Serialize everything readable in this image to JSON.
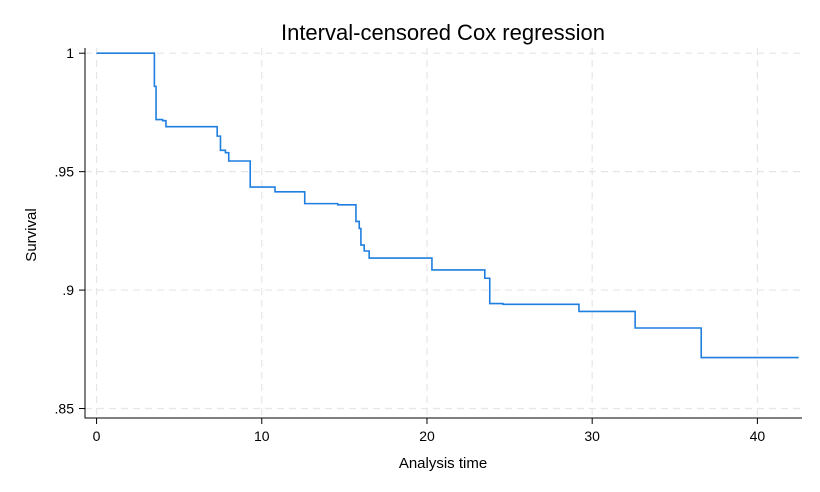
{
  "chart_data": {
    "type": "line",
    "title": "Interval-censored Cox regression",
    "xlabel": "Analysis time",
    "ylabel": "Survival",
    "xlim": [
      -0.7,
      42.7
    ],
    "ylim": [
      0.846,
      1.0022
    ],
    "xticks": [
      0,
      10,
      20,
      30,
      40
    ],
    "xtick_labels": [
      "0",
      "10",
      "20",
      "30",
      "40"
    ],
    "yticks": [
      0.85,
      0.9,
      0.95,
      1
    ],
    "ytick_labels": [
      ".85",
      ".9",
      ".95",
      "1"
    ],
    "grid": true,
    "series": [
      {
        "step": true,
        "color": "#1f7fe0",
        "points": [
          [
            0,
            1.0
          ],
          [
            3.5,
            0.986
          ],
          [
            3.6,
            0.972
          ],
          [
            4.0,
            0.9715
          ],
          [
            4.2,
            0.969
          ],
          [
            7.3,
            0.965
          ],
          [
            7.5,
            0.959
          ],
          [
            7.8,
            0.958
          ],
          [
            8.0,
            0.9545
          ],
          [
            9.3,
            0.9435
          ],
          [
            10.8,
            0.9415
          ],
          [
            12.6,
            0.9365
          ],
          [
            14.6,
            0.936
          ],
          [
            15.7,
            0.929
          ],
          [
            15.9,
            0.926
          ],
          [
            16.0,
            0.919
          ],
          [
            16.2,
            0.9165
          ],
          [
            16.5,
            0.9135
          ],
          [
            20.3,
            0.9085
          ],
          [
            23.5,
            0.905
          ],
          [
            23.8,
            0.8943
          ],
          [
            24.6,
            0.894
          ],
          [
            29.2,
            0.891
          ],
          [
            32.6,
            0.884
          ],
          [
            36.6,
            0.8715
          ],
          [
            42.5,
            0.8715
          ]
        ]
      }
    ]
  }
}
